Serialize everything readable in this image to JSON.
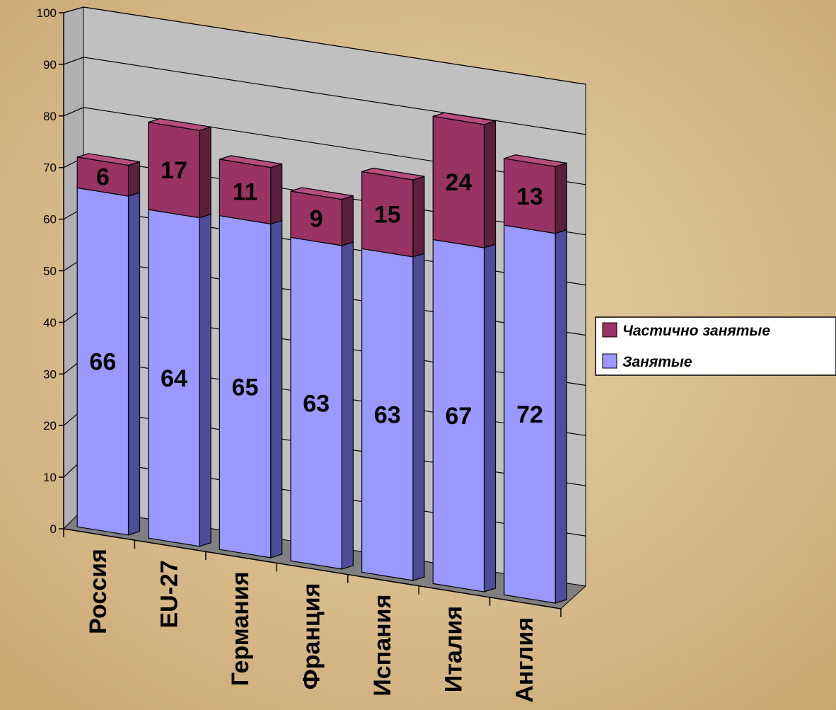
{
  "chart_data": {
    "type": "bar",
    "stacked": true,
    "three_d": true,
    "categories": [
      "Россия",
      "EU-27",
      "Германия",
      "Франция",
      "Испания",
      "Италия",
      "Англия"
    ],
    "series": [
      {
        "name": "Занятые",
        "values": [
          66,
          64,
          65,
          63,
          63,
          67,
          72
        ]
      },
      {
        "name": "Частично занятые",
        "values": [
          6,
          17,
          11,
          9,
          15,
          24,
          13
        ]
      }
    ],
    "ylim": [
      0,
      100
    ],
    "yticks": [
      "0",
      "10",
      "20",
      "30",
      "40",
      "50",
      "60",
      "70",
      "80",
      "90",
      "100"
    ],
    "grid": true,
    "legend": {
      "position": "right",
      "items": [
        "Частично занятые",
        "Занятые"
      ]
    },
    "colors": {
      "occupied_front": "#9999ff",
      "occupied_side": "#4d4d99",
      "occupied_top": "#b3b3ff",
      "partial_front": "#993366",
      "partial_side": "#5c1f3d",
      "partial_top": "#b84d80",
      "floor": "#808080",
      "wall": "#c0c0c0",
      "background": "#d7b98a"
    }
  }
}
